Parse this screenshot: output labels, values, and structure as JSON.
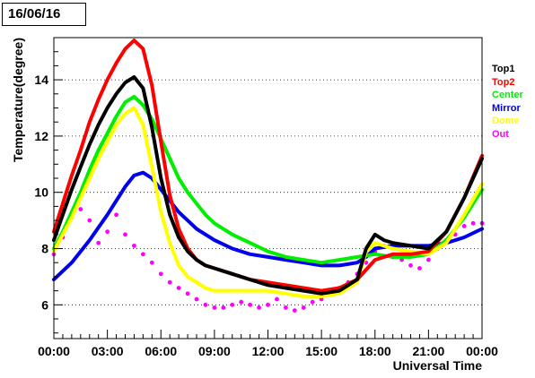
{
  "header": {
    "date_label": "16/06/16"
  },
  "chart_data": {
    "type": "line",
    "xlabel": "Universal Time",
    "ylabel": "Temperature(degree)",
    "xlim": [
      0,
      24
    ],
    "ylim": [
      4.8,
      15.5
    ],
    "x_tick_labels": [
      "00:00",
      "03:00",
      "06:00",
      "09:00",
      "12:00",
      "15:00",
      "18:00",
      "21:00",
      "00:00"
    ],
    "x_ticks": [
      0,
      3,
      6,
      9,
      12,
      15,
      18,
      21,
      24
    ],
    "y_ticks": [
      6,
      8,
      10,
      12,
      14
    ],
    "y_tick_labels": [
      "6",
      "8",
      "10",
      "12",
      "14"
    ],
    "grid": "horizontal dotted",
    "legend_position": "right",
    "series": [
      {
        "name": "Top1",
        "color": "#000000",
        "x": [
          0,
          0.5,
          1,
          1.5,
          2,
          2.5,
          3,
          3.5,
          4,
          4.5,
          5,
          5.5,
          6,
          6.5,
          7,
          7.5,
          8,
          8.5,
          9,
          10,
          11,
          12,
          13,
          14,
          15,
          16,
          17,
          17.5,
          18,
          18.5,
          19,
          20,
          21,
          22,
          23,
          24
        ],
        "y": [
          8.3,
          9.2,
          10.1,
          10.9,
          11.7,
          12.4,
          13.0,
          13.5,
          13.9,
          14.1,
          13.7,
          12.3,
          10.5,
          9.2,
          8.4,
          7.9,
          7.6,
          7.4,
          7.3,
          7.1,
          6.9,
          6.7,
          6.6,
          6.5,
          6.4,
          6.5,
          6.9,
          8.0,
          8.5,
          8.3,
          8.2,
          8.1,
          8.0,
          8.6,
          9.8,
          11.2
        ]
      },
      {
        "name": "Top2",
        "color": "#ff0000",
        "x": [
          0,
          0.5,
          1,
          1.5,
          2,
          2.5,
          3,
          3.5,
          4,
          4.5,
          5,
          5.5,
          6,
          6.5,
          7,
          7.5,
          8,
          8.5,
          9,
          10,
          11,
          12,
          13,
          14,
          15,
          16,
          17,
          18,
          19,
          20,
          21,
          22,
          23,
          24
        ],
        "y": [
          8.6,
          9.6,
          10.6,
          11.5,
          12.5,
          13.3,
          14.0,
          14.6,
          15.1,
          15.4,
          15.1,
          13.8,
          11.8,
          9.9,
          8.7,
          8.0,
          7.6,
          7.4,
          7.3,
          7.1,
          6.9,
          6.8,
          6.7,
          6.6,
          6.5,
          6.6,
          6.9,
          7.6,
          7.8,
          7.8,
          7.9,
          8.6,
          9.8,
          11.3
        ]
      },
      {
        "name": "Center",
        "color": "#00ee00",
        "x": [
          0,
          0.5,
          1,
          1.5,
          2,
          2.5,
          3,
          3.5,
          4,
          4.5,
          5,
          5.5,
          6,
          6.5,
          7,
          7.5,
          8,
          8.5,
          9,
          10,
          11,
          12,
          13,
          14,
          15,
          16,
          17,
          18,
          19,
          20,
          21,
          22,
          23,
          24
        ],
        "y": [
          8.0,
          8.6,
          9.3,
          10.0,
          10.8,
          11.5,
          12.1,
          12.7,
          13.2,
          13.4,
          13.1,
          12.6,
          11.9,
          11.2,
          10.5,
          10.0,
          9.6,
          9.2,
          8.9,
          8.5,
          8.2,
          7.9,
          7.7,
          7.6,
          7.5,
          7.6,
          7.7,
          7.8,
          7.7,
          7.7,
          7.8,
          8.3,
          9.1,
          10.1
        ]
      },
      {
        "name": "Mirror",
        "color": "#0000ee",
        "x": [
          0,
          1,
          2,
          3,
          4,
          4.5,
          5,
          5.5,
          6,
          7,
          8,
          9,
          10,
          11,
          12,
          13,
          14,
          15,
          16,
          17,
          17.5,
          18,
          19,
          20,
          21,
          22,
          23,
          24
        ],
        "y": [
          6.9,
          7.5,
          8.3,
          9.2,
          10.2,
          10.6,
          10.7,
          10.5,
          10.1,
          9.3,
          8.7,
          8.3,
          8.0,
          7.8,
          7.7,
          7.6,
          7.5,
          7.4,
          7.4,
          7.5,
          7.7,
          8.0,
          8.1,
          8.1,
          8.1,
          8.2,
          8.4,
          8.7
        ]
      },
      {
        "name": "Dome",
        "color": "#ffff00",
        "x": [
          0,
          0.5,
          1,
          1.5,
          2,
          2.5,
          3,
          3.5,
          4,
          4.5,
          5,
          5.5,
          6,
          6.5,
          7,
          7.5,
          8,
          8.5,
          9,
          10,
          11,
          12,
          13,
          14,
          15,
          16,
          17,
          17.5,
          18,
          18.5,
          19,
          20,
          21,
          22,
          23,
          24
        ],
        "y": [
          7.9,
          8.5,
          9.1,
          9.8,
          10.5,
          11.2,
          11.8,
          12.4,
          12.8,
          13.0,
          12.4,
          10.9,
          9.3,
          8.2,
          7.4,
          7.0,
          6.8,
          6.6,
          6.5,
          6.5,
          6.5,
          6.5,
          6.4,
          6.3,
          6.3,
          6.4,
          6.8,
          7.9,
          8.2,
          8.1,
          8.0,
          7.9,
          7.8,
          8.2,
          9.2,
          10.3
        ]
      },
      {
        "name": "Out",
        "color": "#ff00ff",
        "style": "markers",
        "x": [
          0,
          0.5,
          1,
          1.5,
          2,
          2.5,
          3,
          3.5,
          4,
          4.5,
          5,
          5.5,
          6,
          6.5,
          7,
          7.5,
          8,
          8.5,
          9,
          9.5,
          10,
          10.5,
          11,
          11.5,
          12,
          12.5,
          13,
          13.5,
          14,
          14.5,
          15,
          15.5,
          16,
          16.5,
          17,
          17.5,
          18,
          18.5,
          19,
          19.5,
          20,
          20.5,
          21,
          21.5,
          22,
          22.5,
          23,
          23.5,
          24
        ],
        "y": [
          7.8,
          8.4,
          9.1,
          9.4,
          9.0,
          8.2,
          8.6,
          9.2,
          8.5,
          8.1,
          7.8,
          7.5,
          7.1,
          6.8,
          6.6,
          6.4,
          6.2,
          6.0,
          5.9,
          5.9,
          6.0,
          6.1,
          6.0,
          5.9,
          6.0,
          6.2,
          5.9,
          5.8,
          5.9,
          6.1,
          6.2,
          6.4,
          6.6,
          6.8,
          7.1,
          7.5,
          7.9,
          8.1,
          7.7,
          7.6,
          7.4,
          7.3,
          7.6,
          8.0,
          8.3,
          8.5,
          8.8,
          8.9,
          8.9
        ]
      }
    ]
  }
}
